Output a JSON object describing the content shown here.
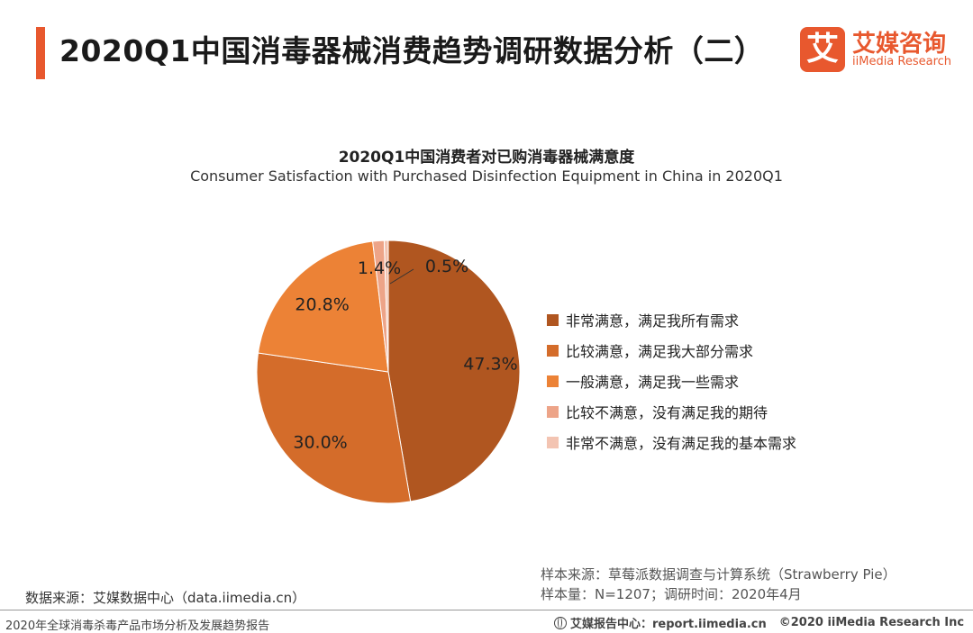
{
  "header": {
    "title": "2020Q1中国消毒器械消费趋势调研数据分析（二）",
    "logo_mark": "艾",
    "logo_cn": "艾媒咨询",
    "logo_en": "iiMedia Research",
    "accent_color": "#e8582e"
  },
  "chart_data": {
    "type": "pie",
    "title": "2020Q1中国消费者对已购消毒器械满意度",
    "subtitle": "Consumer Satisfaction with Purchased Disinfection Equipment in China in 2020Q1",
    "legend_position": "right",
    "slices": [
      {
        "label": "非常满意，满足我所有需求",
        "value": 47.3,
        "display": "47.3%",
        "color": "#b05620"
      },
      {
        "label": "比较满意，满足我大部分需求",
        "value": 30.0,
        "display": "30.0%",
        "color": "#d46c2a"
      },
      {
        "label": "一般满意，满足我一些需求",
        "value": 20.8,
        "display": "20.8%",
        "color": "#ec8236"
      },
      {
        "label": "比较不满意，没有满足我的期待",
        "value": 1.4,
        "display": "1.4%",
        "color": "#eda488"
      },
      {
        "label": "非常不满意，没有满足我的基本需求",
        "value": 0.5,
        "display": "0.5%",
        "color": "#f3c4b2"
      }
    ]
  },
  "footer": {
    "data_source": "数据来源：艾媒数据中心（data.iimedia.cn）",
    "sample_source": "样本来源：草莓派数据调查与计算系统（Strawberry Pie）",
    "sample_size": "样本量：N=1207；调研时间：2020年4月",
    "report_name": "2020年全球消毒杀毒产品市场分析及发展趋势报告",
    "report_center": "艾媒报告中心：report.iimedia.cn",
    "copyright": "©2020  iiMedia Research  Inc"
  }
}
